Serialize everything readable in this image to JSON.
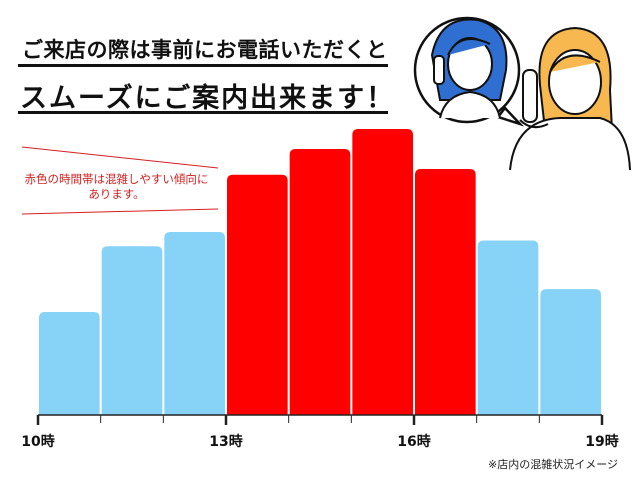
{
  "header": {
    "line1": "ご来店の際は事前にお電話いただくと",
    "line2": "スムーズにご案内出来ます！"
  },
  "annotation": {
    "line1": "赤色の時間帯は混雑しやすい傾向に",
    "line2": "あります。"
  },
  "caption": "※店内の混雑状況イメージ",
  "illustration": "two-women-on-phone",
  "colors": {
    "busy": "#ff0000",
    "normal": "#87d3f8",
    "annotation": "#d42020"
  },
  "chart_data": {
    "type": "bar",
    "title": "",
    "xlabel": "",
    "ylabel": "",
    "x_ticks": [
      "10時",
      "13時",
      "16時",
      "19時"
    ],
    "hours_start": [
      10,
      11,
      12,
      13,
      14,
      15,
      16,
      17,
      18
    ],
    "values": [
      36,
      59,
      64,
      84,
      93,
      100,
      86,
      61,
      44
    ],
    "busy": [
      false,
      false,
      false,
      true,
      true,
      true,
      true,
      false,
      false
    ],
    "grid": false
  }
}
